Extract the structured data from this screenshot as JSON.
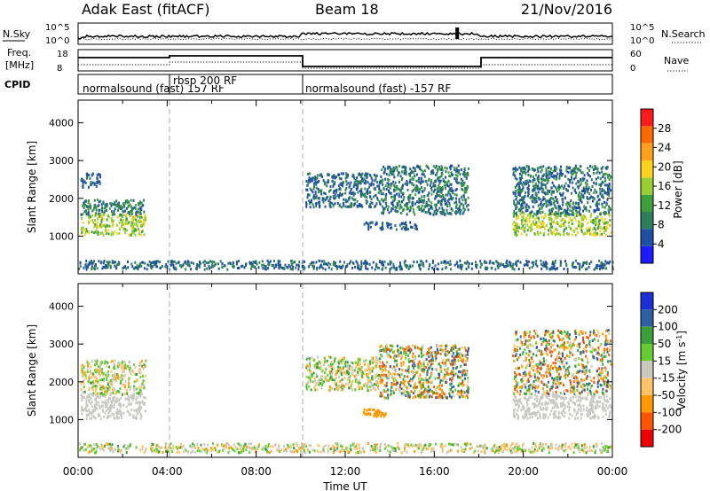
{
  "header": {
    "radar": "Adak East (fitACF)",
    "beam": "Beam 18",
    "date": "21/Nov/2016"
  },
  "sky_panel": {
    "left_label": "N.Sky",
    "right_label": "N.Search",
    "ticks": [
      "10^5",
      "10^0"
    ]
  },
  "freq_panel": {
    "left_label_1": "Freq.",
    "left_label_2": "[MHz]",
    "left_ticks": [
      "18",
      "8"
    ],
    "right_label": "Nave",
    "right_ticks": [
      "60",
      "0"
    ]
  },
  "cpid_panel": {
    "label": "CPID",
    "segments": [
      {
        "start": 0,
        "end": 4,
        "text": "normalsound (fast) 157 RF"
      },
      {
        "start": 4,
        "end": 10,
        "text": "rbsp 200 RF"
      },
      {
        "start": 10,
        "end": 24,
        "text": "normalsound (fast) -157 RF"
      }
    ]
  },
  "colors": {
    "power_scale": [
      "#1a1aff",
      "#1e4fa0",
      "#2e7d5b",
      "#3d9e3d",
      "#9acd32",
      "#ffd21f",
      "#ff9f1a",
      "#ff6a00",
      "#ff1a1a"
    ],
    "velocity_scale": [
      "#ee0000",
      "#ff5500",
      "#ff9900",
      "#ffc266",
      "#c8c8c0",
      "#66cc33",
      "#3a9e3a",
      "#2e5fa0",
      "#1a2fd6"
    ]
  },
  "chart_data": [
    {
      "type": "heatmap",
      "name": "power",
      "xlabel": "",
      "ylabel": "Slant Range [km]",
      "xlim": [
        0,
        24
      ],
      "ylim": [
        0,
        4600
      ],
      "yticks": [
        "1000",
        "2000",
        "3000",
        "4000"
      ],
      "colorbar": {
        "label": "Power [dB]",
        "ticks": [
          "4",
          "8",
          "12",
          "16",
          "20",
          "24",
          "28"
        ],
        "range": [
          0,
          32
        ]
      },
      "scatter_regions": [
        {
          "x": [
            0.1,
            3.0
          ],
          "y": [
            1050,
            1650
          ],
          "value": [
            12,
            20
          ]
        },
        {
          "x": [
            0.1,
            3.0
          ],
          "y": [
            1600,
            2000
          ],
          "value": [
            6,
            12
          ]
        },
        {
          "x": [
            0.1,
            1.0
          ],
          "y": [
            2300,
            2700
          ],
          "value": [
            4,
            8
          ]
        },
        {
          "x": [
            10.2,
            13.5
          ],
          "y": [
            1800,
            2700
          ],
          "value": [
            4,
            10
          ]
        },
        {
          "x": [
            12.8,
            15.2
          ],
          "y": [
            1200,
            1400
          ],
          "value": [
            4,
            8
          ]
        },
        {
          "x": [
            13.5,
            17.5
          ],
          "y": [
            1600,
            2900
          ],
          "value": [
            4,
            12
          ]
        },
        {
          "x": [
            19.5,
            23.9
          ],
          "y": [
            1050,
            1650
          ],
          "value": [
            12,
            20
          ]
        },
        {
          "x": [
            19.5,
            23.9
          ],
          "y": [
            1600,
            2900
          ],
          "value": [
            4,
            12
          ]
        },
        {
          "x": [
            0.0,
            24.0
          ],
          "y": [
            150,
            380
          ],
          "value": [
            4,
            10
          ]
        }
      ]
    },
    {
      "type": "heatmap",
      "name": "velocity",
      "xlabel": "Time UT",
      "ylabel": "Slant Range [km]",
      "xlim": [
        0,
        24
      ],
      "ylim": [
        0,
        4600
      ],
      "xticks": [
        "00:00",
        "04:00",
        "08:00",
        "12:00",
        "16:00",
        "20:00",
        "00:00"
      ],
      "yticks": [
        "1000",
        "2000",
        "3000",
        "4000"
      ],
      "colorbar": {
        "label": "Velocity [m s^-1]",
        "ticks": [
          "200",
          "100",
          "50",
          "15",
          "-15",
          "-50",
          "-100",
          "-200"
        ]
      },
      "scatter_regions": [
        {
          "x": [
            0.1,
            3.0
          ],
          "y": [
            1050,
            1700
          ],
          "value": [
            -10,
            10
          ]
        },
        {
          "x": [
            0.1,
            3.0
          ],
          "y": [
            1700,
            2600
          ],
          "value": [
            -60,
            60
          ]
        },
        {
          "x": [
            10.2,
            13.5
          ],
          "y": [
            1800,
            2700
          ],
          "value": [
            -60,
            80
          ]
        },
        {
          "x": [
            12.8,
            13.8
          ],
          "y": [
            1100,
            1300
          ],
          "value": [
            -90,
            -60
          ]
        },
        {
          "x": [
            13.5,
            17.5
          ],
          "y": [
            1600,
            3000
          ],
          "value": [
            -150,
            150
          ]
        },
        {
          "x": [
            19.5,
            23.9
          ],
          "y": [
            1050,
            1700
          ],
          "value": [
            -10,
            10
          ]
        },
        {
          "x": [
            19.5,
            23.9
          ],
          "y": [
            1700,
            3400
          ],
          "value": [
            -150,
            150
          ]
        },
        {
          "x": [
            0.0,
            24.0
          ],
          "y": [
            150,
            400
          ],
          "value": [
            -60,
            60
          ]
        }
      ]
    }
  ]
}
